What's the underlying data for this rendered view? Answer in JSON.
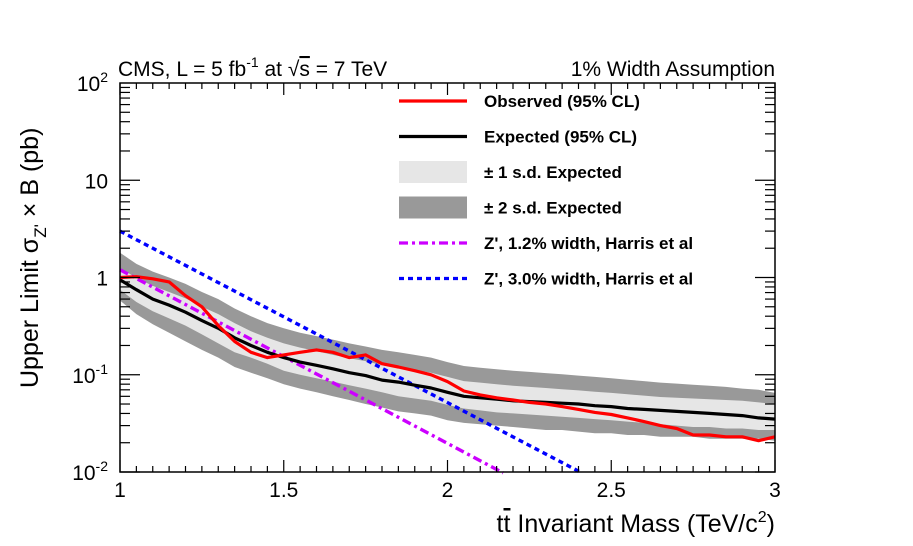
{
  "header": {
    "left_text": "CMS, L = 5 fb",
    "left_lumi_exp": "-1",
    "left_tail_a": " at ",
    "left_sqrt_arg": "s",
    "left_tail_b": " = 7 TeV",
    "right_text": "1% Width Assumption"
  },
  "chart_data": {
    "type": "line",
    "xlabel": "tt̄ Invariant Mass (TeV/c²)",
    "xlabel_parts": {
      "main": "tt",
      "bar": "t",
      "rest": " Invariant Mass (TeV/c",
      "exp": "2",
      "close": ")"
    },
    "ylabel": "Upper Limit σ_Z' × B (pb)",
    "ylabel_parts": {
      "main": "Upper Limit σ",
      "sub": "Z'",
      "rest": " × B (pb)"
    },
    "xlim": [
      1.0,
      3.0
    ],
    "ylim": [
      0.01,
      100
    ],
    "yscale": "log",
    "grid": false,
    "legend_position": "top-right",
    "x_ticks": [
      {
        "value": 1.0,
        "label": "1"
      },
      {
        "value": 1.5,
        "label": "1.5"
      },
      {
        "value": 2.0,
        "label": "2"
      },
      {
        "value": 2.5,
        "label": "2.5"
      },
      {
        "value": 3.0,
        "label": "3"
      }
    ],
    "y_ticks": [
      {
        "value": 100,
        "base": "10",
        "exp": "2"
      },
      {
        "value": 10,
        "base": "10",
        "exp": ""
      },
      {
        "value": 1,
        "base": "1",
        "exp": ""
      },
      {
        "value": 0.1,
        "base": "10",
        "exp": "-1"
      },
      {
        "value": 0.01,
        "base": "10",
        "exp": "-2"
      }
    ],
    "x": [
      1.0,
      1.05,
      1.1,
      1.15,
      1.2,
      1.25,
      1.3,
      1.35,
      1.4,
      1.45,
      1.5,
      1.55,
      1.6,
      1.65,
      1.7,
      1.75,
      1.8,
      1.85,
      1.9,
      1.95,
      2.0,
      2.05,
      2.1,
      2.15,
      2.2,
      2.25,
      2.3,
      2.35,
      2.4,
      2.45,
      2.5,
      2.55,
      2.6,
      2.65,
      2.7,
      2.75,
      2.8,
      2.85,
      2.9,
      2.95,
      3.0
    ],
    "series": [
      {
        "name": "Observed (95% CL)",
        "style": "line",
        "color": "#ff0000",
        "dash": "solid",
        "values": [
          1.0,
          1.02,
          0.97,
          0.9,
          0.65,
          0.5,
          0.32,
          0.22,
          0.17,
          0.15,
          0.16,
          0.17,
          0.18,
          0.17,
          0.15,
          0.16,
          0.13,
          0.12,
          0.11,
          0.1,
          0.085,
          0.068,
          0.062,
          0.058,
          0.055,
          0.052,
          0.05,
          0.047,
          0.044,
          0.041,
          0.039,
          0.036,
          0.033,
          0.03,
          0.028,
          0.024,
          0.024,
          0.023,
          0.023,
          0.021,
          0.023
        ]
      },
      {
        "name": "Expected (95% CL)",
        "style": "line",
        "color": "#000000",
        "dash": "solid",
        "values": [
          0.95,
          0.75,
          0.6,
          0.52,
          0.44,
          0.36,
          0.3,
          0.24,
          0.2,
          0.17,
          0.15,
          0.135,
          0.125,
          0.115,
          0.105,
          0.098,
          0.088,
          0.084,
          0.078,
          0.073,
          0.066,
          0.06,
          0.058,
          0.056,
          0.054,
          0.053,
          0.052,
          0.051,
          0.05,
          0.048,
          0.047,
          0.045,
          0.044,
          0.043,
          0.042,
          0.041,
          0.04,
          0.039,
          0.038,
          0.036,
          0.035
        ]
      },
      {
        "name": "± 1 s.d. Expected",
        "style": "band",
        "color": "#e6e6e6",
        "lower": [
          0.75,
          0.56,
          0.45,
          0.38,
          0.32,
          0.26,
          0.21,
          0.17,
          0.15,
          0.13,
          0.11,
          0.1,
          0.092,
          0.085,
          0.078,
          0.072,
          0.066,
          0.06,
          0.057,
          0.054,
          0.049,
          0.045,
          0.043,
          0.041,
          0.04,
          0.039,
          0.038,
          0.037,
          0.036,
          0.035,
          0.034,
          0.033,
          0.032,
          0.031,
          0.03,
          0.029,
          0.029,
          0.028,
          0.028,
          0.027,
          0.027
        ],
        "upper": [
          1.25,
          0.99,
          0.82,
          0.71,
          0.61,
          0.5,
          0.42,
          0.34,
          0.28,
          0.24,
          0.21,
          0.19,
          0.175,
          0.16,
          0.148,
          0.138,
          0.125,
          0.118,
          0.112,
          0.105,
          0.095,
          0.086,
          0.083,
          0.08,
          0.077,
          0.075,
          0.073,
          0.071,
          0.069,
          0.067,
          0.065,
          0.063,
          0.061,
          0.059,
          0.058,
          0.057,
          0.056,
          0.055,
          0.054,
          0.052,
          0.05
        ]
      },
      {
        "name": "± 2 s.d. Expected",
        "style": "band",
        "color": "#999999",
        "lower": [
          0.58,
          0.42,
          0.33,
          0.27,
          0.22,
          0.18,
          0.15,
          0.12,
          0.105,
          0.092,
          0.08,
          0.072,
          0.066,
          0.06,
          0.055,
          0.05,
          0.046,
          0.042,
          0.04,
          0.038,
          0.034,
          0.032,
          0.031,
          0.03,
          0.029,
          0.028,
          0.027,
          0.027,
          0.026,
          0.025,
          0.025,
          0.024,
          0.024,
          0.023,
          0.023,
          0.023,
          0.022,
          0.022,
          0.022,
          0.022,
          0.021
        ],
        "upper": [
          1.8,
          1.38,
          1.15,
          1.0,
          0.86,
          0.71,
          0.6,
          0.48,
          0.4,
          0.34,
          0.3,
          0.27,
          0.25,
          0.23,
          0.21,
          0.195,
          0.18,
          0.17,
          0.16,
          0.15,
          0.135,
          0.123,
          0.118,
          0.114,
          0.11,
          0.107,
          0.104,
          0.101,
          0.098,
          0.095,
          0.092,
          0.089,
          0.086,
          0.083,
          0.081,
          0.079,
          0.077,
          0.075,
          0.072,
          0.07,
          0.065
        ]
      },
      {
        "name": "Z', 1.2% width, Harris et al",
        "style": "line",
        "color": "#cc00ff",
        "dash": "dashdot",
        "x": [
          1.0,
          2.17
        ],
        "values": [
          1.2,
          0.0098
        ]
      },
      {
        "name": "Z', 3.0% width, Harris et al",
        "style": "line",
        "color": "#0000ff",
        "dash": "dotted",
        "x": [
          1.0,
          2.41
        ],
        "values": [
          3.0,
          0.0098
        ]
      }
    ]
  }
}
